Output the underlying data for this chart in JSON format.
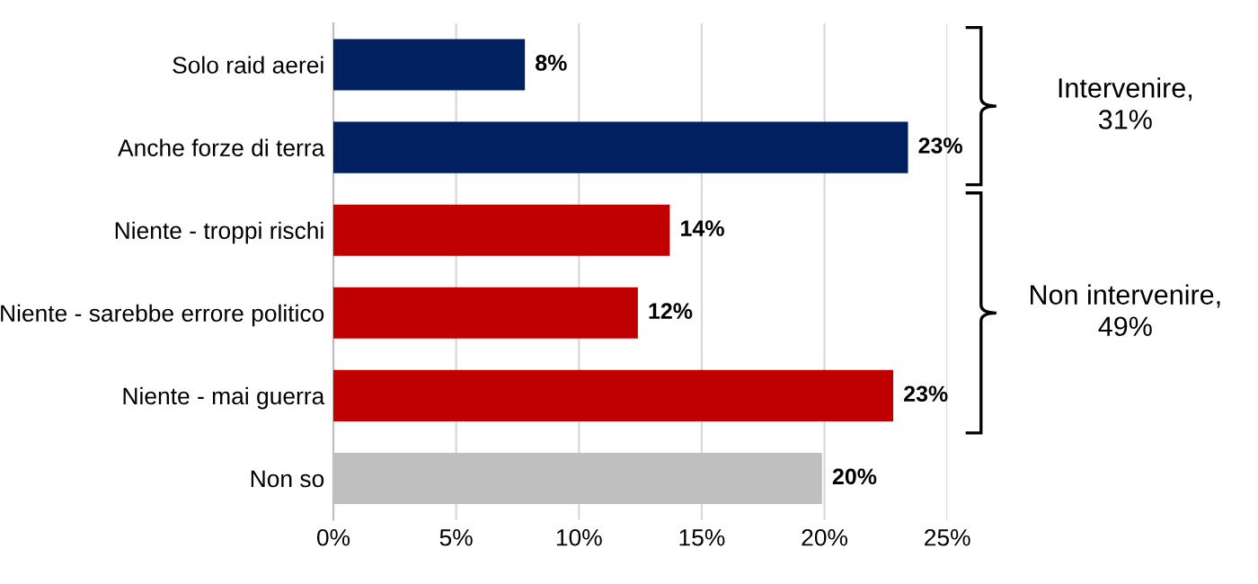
{
  "chart_data": {
    "type": "bar",
    "orientation": "horizontal",
    "categories": [
      "Solo raid aerei",
      "Anche forze di terra",
      "Niente - troppi rischi",
      "Niente - sarebbe errore politico",
      "Niente - mai guerra",
      "Non so"
    ],
    "values": [
      7.8,
      23.4,
      13.7,
      12.4,
      22.8,
      19.9
    ],
    "colors": [
      "#002060",
      "#002060",
      "#c00000",
      "#c00000",
      "#c00000",
      "#bfbfbf"
    ],
    "value_labels": [
      "8%",
      "23%",
      "14%",
      "12%",
      "23%",
      "20%"
    ],
    "xlim": [
      0,
      25
    ],
    "xticks": [
      {
        "value": 0,
        "label": "0%"
      },
      {
        "value": 5,
        "label": "5%"
      },
      {
        "value": 10,
        "label": "10%"
      },
      {
        "value": 15,
        "label": "15%"
      },
      {
        "value": 20,
        "label": "20%"
      },
      {
        "value": 25,
        "label": "25%"
      }
    ],
    "grid": "x",
    "annotations": [
      "Intervenire,\n31%",
      "Non intervenire,\n49%"
    ]
  }
}
